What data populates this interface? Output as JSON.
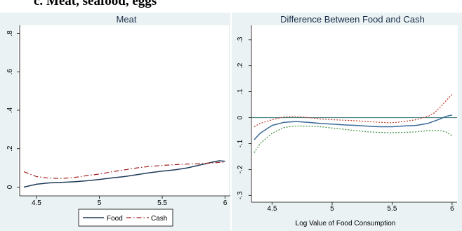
{
  "page_heading": "c.   Meat, seafood, eggs",
  "chart_data": [
    {
      "type": "line",
      "title": "Meat",
      "xlabel": "",
      "ylabel": "",
      "xlim": [
        4.4,
        6.03
      ],
      "ylim": [
        -0.02,
        0.82
      ],
      "x_ticks": [
        4.5,
        5,
        5.5,
        6
      ],
      "y_ticks": [
        0,
        0.2,
        0.4,
        0.6,
        0.8
      ],
      "x_tick_labels": [
        "4.5",
        "5",
        "5.5",
        "6"
      ],
      "y_tick_labels": [
        "0",
        ".2",
        ".4",
        ".6",
        ".8"
      ],
      "grid": false,
      "legend": {
        "position": "bottom",
        "entries": [
          "Food",
          "Cash"
        ]
      },
      "series": [
        {
          "name": "Food",
          "color": "#1f3b5a",
          "style": "solid",
          "x": [
            4.4,
            4.5,
            4.6,
            4.7,
            4.8,
            4.9,
            5.0,
            5.1,
            5.2,
            5.3,
            5.4,
            5.5,
            5.6,
            5.7,
            5.8,
            5.9,
            5.95,
            6.0
          ],
          "y": [
            0.0,
            0.015,
            0.022,
            0.025,
            0.028,
            0.033,
            0.04,
            0.048,
            0.055,
            0.065,
            0.075,
            0.083,
            0.09,
            0.1,
            0.115,
            0.13,
            0.137,
            0.135
          ]
        },
        {
          "name": "Cash",
          "color": "#a32020",
          "style": "dashed",
          "x": [
            4.4,
            4.5,
            4.6,
            4.7,
            4.8,
            4.9,
            5.0,
            5.1,
            5.2,
            5.3,
            5.4,
            5.5,
            5.6,
            5.7,
            5.8,
            5.9,
            6.0
          ],
          "y": [
            0.08,
            0.055,
            0.047,
            0.045,
            0.05,
            0.06,
            0.068,
            0.08,
            0.09,
            0.1,
            0.108,
            0.113,
            0.117,
            0.12,
            0.122,
            0.126,
            0.13
          ]
        }
      ]
    },
    {
      "type": "line",
      "title": "Difference Between Food and Cash",
      "xlabel": "Log Value of Food Consumption",
      "ylabel": "",
      "xlim": [
        4.35,
        6.03
      ],
      "ylim": [
        -0.31,
        0.34
      ],
      "x_ticks": [
        4.5,
        5,
        5.5,
        6
      ],
      "y_ticks": [
        -0.3,
        -0.2,
        -0.1,
        0,
        0.1,
        0.2,
        0.3
      ],
      "x_tick_labels": [
        "4.5",
        "5",
        "5.5",
        "6"
      ],
      "y_tick_labels": [
        "-.3",
        "-.2",
        "-.1",
        "0",
        ".1",
        ".2",
        ".3"
      ],
      "grid": false,
      "reference_line": {
        "y": 0,
        "color": "#3a7a78"
      },
      "series": [
        {
          "color": "#3a6a9a",
          "style": "solid",
          "x": [
            4.35,
            4.4,
            4.5,
            4.6,
            4.7,
            4.8,
            4.9,
            5.0,
            5.1,
            5.2,
            5.3,
            5.4,
            5.5,
            5.6,
            5.7,
            5.8,
            5.9,
            5.95,
            6.0
          ],
          "y": [
            -0.085,
            -0.06,
            -0.03,
            -0.018,
            -0.015,
            -0.018,
            -0.022,
            -0.025,
            -0.028,
            -0.03,
            -0.033,
            -0.035,
            -0.035,
            -0.032,
            -0.03,
            -0.022,
            -0.005,
            0.005,
            0.01
          ]
        },
        {
          "color": "#c0392b",
          "style": "dotted",
          "x": [
            4.35,
            4.4,
            4.5,
            4.6,
            4.7,
            4.8,
            4.9,
            5.0,
            5.1,
            5.2,
            5.3,
            5.4,
            5.5,
            5.6,
            5.7,
            5.8,
            5.85,
            5.9,
            5.95,
            6.0
          ],
          "y": [
            -0.035,
            -0.022,
            -0.008,
            0.003,
            0.005,
            0.0,
            -0.005,
            -0.008,
            -0.01,
            -0.012,
            -0.015,
            -0.018,
            -0.02,
            -0.015,
            -0.008,
            0.005,
            0.018,
            0.04,
            0.065,
            0.09
          ]
        },
        {
          "color": "#3a8a3a",
          "style": "dotted",
          "x": [
            4.35,
            4.4,
            4.5,
            4.6,
            4.7,
            4.8,
            4.9,
            5.0,
            5.1,
            5.2,
            5.3,
            5.4,
            5.5,
            5.6,
            5.7,
            5.8,
            5.9,
            5.95,
            6.0
          ],
          "y": [
            -0.135,
            -0.1,
            -0.06,
            -0.038,
            -0.032,
            -0.033,
            -0.035,
            -0.04,
            -0.045,
            -0.05,
            -0.055,
            -0.057,
            -0.058,
            -0.057,
            -0.055,
            -0.05,
            -0.05,
            -0.055,
            -0.07
          ]
        }
      ]
    }
  ]
}
